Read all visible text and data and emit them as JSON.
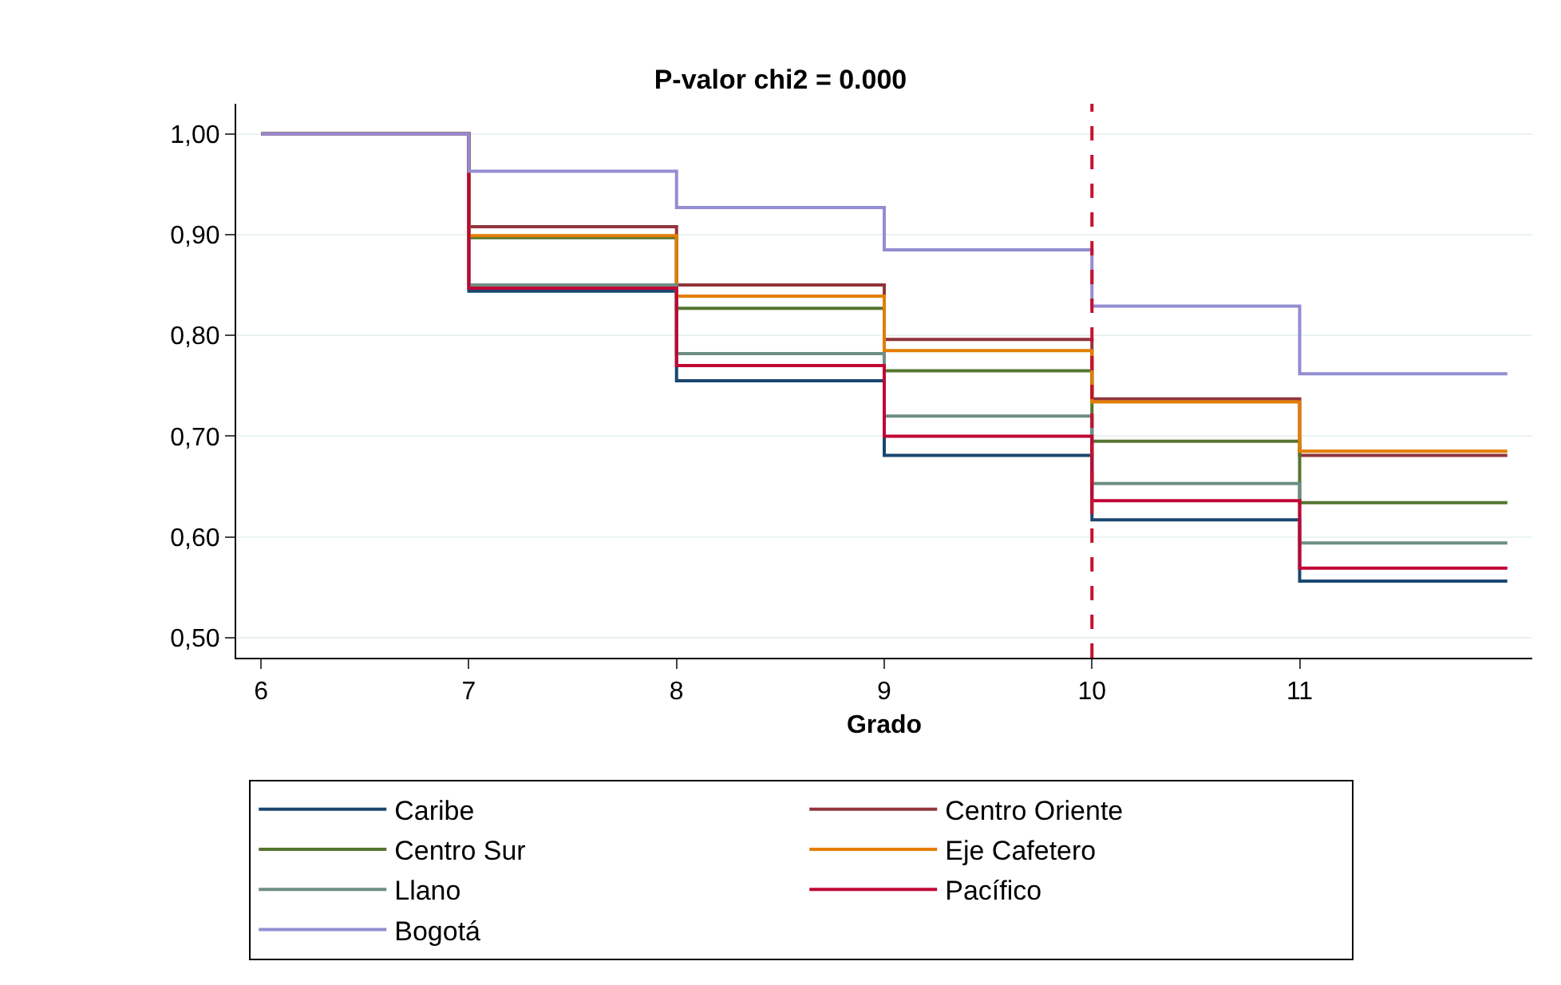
{
  "chart_data": {
    "type": "step",
    "title": "P-valor chi2 = 0.000",
    "xlabel": "Grado",
    "x": [
      6,
      7,
      8,
      9,
      10,
      11,
      12
    ],
    "xlim": [
      5.88,
      12.12
    ],
    "xticks": [
      6,
      7,
      8,
      9,
      10,
      11
    ],
    "ylim": [
      0.48,
      1.03
    ],
    "yticks": [
      {
        "value": 0.5,
        "label": "0,50"
      },
      {
        "value": 0.6,
        "label": "0,60"
      },
      {
        "value": 0.7,
        "label": "0,70"
      },
      {
        "value": 0.8,
        "label": "0,80"
      },
      {
        "value": 0.9,
        "label": "0,90"
      },
      {
        "value": 1.0,
        "label": "1,00"
      }
    ],
    "grid": "y",
    "legend": "bottom",
    "marker": "none",
    "line_style": "solid",
    "ref_lines": [
      {
        "axis": "x",
        "value": 10,
        "color": "#c8102e",
        "line_style": "dashed"
      }
    ],
    "series": [
      {
        "name": "Caribe",
        "color": "#1a476f",
        "values": [
          1.0,
          0.844,
          0.755,
          0.681,
          0.617,
          0.556,
          0.556
        ]
      },
      {
        "name": "Centro Oriente",
        "color": "#90353b",
        "values": [
          1.0,
          0.908,
          0.85,
          0.796,
          0.737,
          0.681,
          0.681
        ]
      },
      {
        "name": "Centro Sur",
        "color": "#55752f",
        "values": [
          1.0,
          0.897,
          0.827,
          0.765,
          0.695,
          0.634,
          0.634
        ]
      },
      {
        "name": "Eje Cafetero",
        "color": "#e37e00",
        "values": [
          1.0,
          0.899,
          0.839,
          0.785,
          0.734,
          0.685,
          0.685
        ]
      },
      {
        "name": "Llano",
        "color": "#6e8e84",
        "values": [
          1.0,
          0.85,
          0.782,
          0.72,
          0.653,
          0.594,
          0.594
        ]
      },
      {
        "name": "Pacífico",
        "color": "#c10534",
        "values": [
          1.0,
          0.847,
          0.77,
          0.7,
          0.636,
          0.569,
          0.569
        ]
      },
      {
        "name": "Bogotá",
        "color": "#938dd2",
        "values": [
          1.0,
          0.963,
          0.927,
          0.885,
          0.829,
          0.762,
          0.762
        ]
      }
    ]
  }
}
